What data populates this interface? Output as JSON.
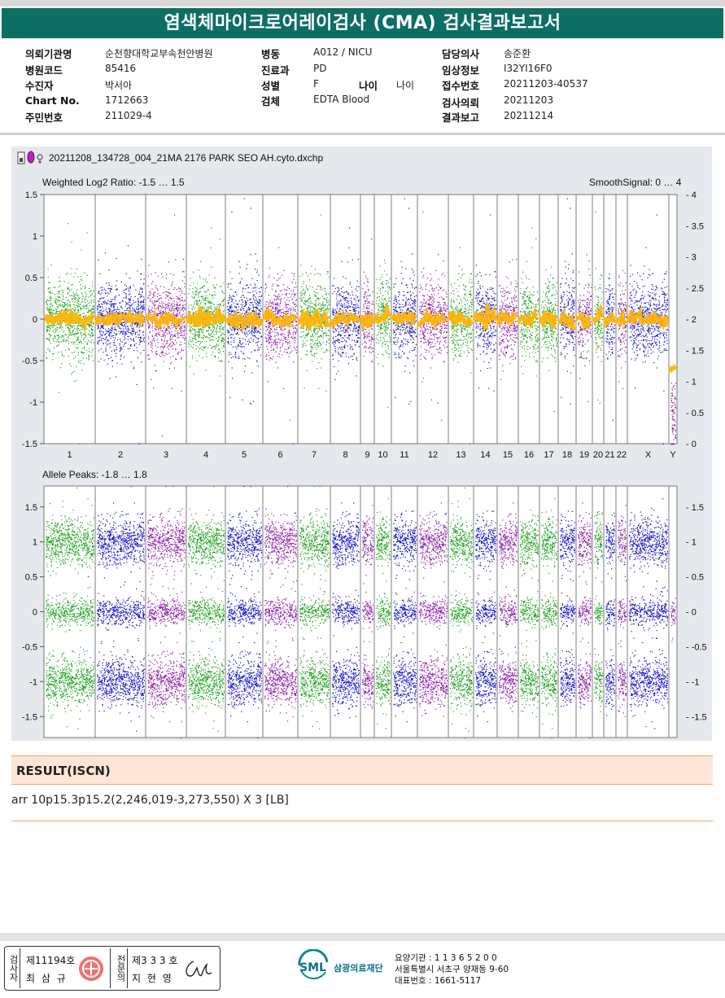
{
  "title": "염색체마이크로어레이검사 (CMA) 검사결과보고서",
  "header_info": {
    "col1": [
      {
        "label": "의뢰기관명",
        "value": "순천향대학교부속천안병원"
      },
      {
        "label": "병원코드",
        "value": "85416"
      },
      {
        "label": "수진자",
        "value": "박서아"
      },
      {
        "label": "Chart No.",
        "value": "1712663"
      },
      {
        "label": "주민번호",
        "value": "211029-4"
      }
    ],
    "col2": [
      {
        "label": "병동",
        "value": "A012 / NICU"
      },
      {
        "label": "진료과",
        "value": "PD"
      },
      {
        "label": "성별",
        "value": "F"
      },
      {
        "label": "검체",
        "value": "EDTA Blood"
      }
    ],
    "age": {
      "label": "나이",
      "value": "나이"
    },
    "col3": [
      {
        "label": "담당의사",
        "value": "송준환"
      },
      {
        "label": "임상정보",
        "value": "I32YI16F0"
      },
      {
        "label": "접수번호",
        "value": "20211203-40537"
      },
      {
        "label": "검사의뢰",
        "value": "20211203"
      },
      {
        "label": "결과보고",
        "value": "20211214"
      }
    ]
  },
  "file_name": "20211208_134728_004_21MA 2176 PARK SEO AH.cyto.dxchp",
  "colors": {
    "green": "#1aa01a",
    "blue": "#1010cc",
    "purple": "#8a1aa8",
    "orange": "#ffb300",
    "title": "#0d6e64"
  },
  "chart_data": [
    {
      "type": "scatter",
      "title": "Weighted Log2 Ratio: -1.5 … 1.5",
      "right_label": "SmoothSignal: 0 … 4",
      "ylim": [
        -1.5,
        1.5
      ],
      "y_ticks": [
        "1.5",
        "1",
        "0.5",
        "0",
        "-0.5",
        "-1",
        "-1.5"
      ],
      "y2_ticks": [
        "4",
        "3.5",
        "3",
        "2.5",
        "2",
        "1.5",
        "1",
        "0.5",
        "0"
      ],
      "categories": [
        "1",
        "2",
        "3",
        "4",
        "5",
        "6",
        "7",
        "8",
        "9",
        "10",
        "11",
        "12",
        "13",
        "14",
        "15",
        "16",
        "17",
        "18",
        "19",
        "20",
        "21",
        "22",
        "X",
        "Y"
      ],
      "smooth_signal": 2,
      "series": [
        {
          "values": [
            0,
            0,
            0,
            0,
            0,
            0,
            0,
            0,
            0,
            0.05,
            0,
            0,
            0,
            0,
            0,
            0,
            0,
            0,
            0,
            0,
            0,
            0,
            0,
            -1.2
          ]
        }
      ]
    },
    {
      "type": "scatter",
      "title": "Allele Peaks: -1.8 … 1.8",
      "ylim": [
        -1.8,
        1.8
      ],
      "y_ticks": [
        "1.5",
        "1",
        "0.5",
        "0",
        "-0.5",
        "-1",
        "-1.5"
      ],
      "y2_ticks": [
        "1.5",
        "1",
        "0.5",
        "0",
        "-0.5",
        "-1",
        "-1.5"
      ],
      "categories": [
        "1",
        "2",
        "3",
        "4",
        "5",
        "6",
        "7",
        "8",
        "9",
        "10",
        "11",
        "12",
        "13",
        "14",
        "15",
        "16",
        "17",
        "18",
        "19",
        "20",
        "21",
        "22",
        "X",
        "Y"
      ],
      "series": [
        {
          "values": [
            1,
            1,
            1,
            1,
            1,
            1,
            1,
            1,
            1,
            1,
            1,
            1,
            1,
            1,
            1,
            1,
            1,
            1,
            1,
            1,
            1,
            1,
            1,
            0
          ]
        }
      ]
    }
  ],
  "result": {
    "heading": "RESULT(ISCN)",
    "text": "arr 10p15.3p15.2(2,246,019-3,273,550) X 3 [LB]"
  },
  "footer": {
    "examiner_label": "검사자",
    "examiner_no": "제11194호",
    "examiner_name": "최 삼 규",
    "confirmer_label": "전문의",
    "confirmer_no": "제3 3 3 호",
    "confirmer_name": "지 현 영",
    "logo": "SML",
    "org": "삼광의료재단",
    "lines": [
      "요양기관 : 1 1 3 6 5 2 0 0",
      "서울특별시 서초구 양재동 9-60",
      "대표번호 : 1661-5117"
    ]
  }
}
